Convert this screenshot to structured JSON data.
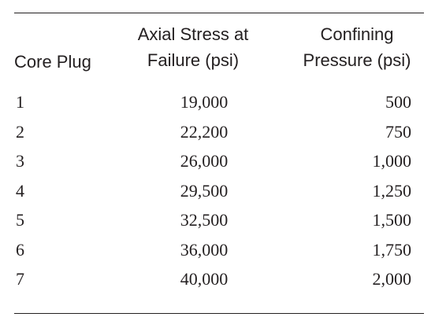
{
  "table": {
    "headers": {
      "core_plug": "Core Plug",
      "axial_stress_line1": "Axial Stress at",
      "axial_stress_line2": "Failure (psi)",
      "confining_line1": "Confining",
      "confining_line2": "Pressure (psi)"
    },
    "rows": [
      {
        "plug": "1",
        "axial": "19,000",
        "confining": "500"
      },
      {
        "plug": "2",
        "axial": "22,200",
        "confining": "750"
      },
      {
        "plug": "3",
        "axial": "26,000",
        "confining": "1,000"
      },
      {
        "plug": "4",
        "axial": "29,500",
        "confining": "1,250"
      },
      {
        "plug": "5",
        "axial": "32,500",
        "confining": "1,500"
      },
      {
        "plug": "6",
        "axial": "36,000",
        "confining": "1,750"
      },
      {
        "plug": "7",
        "axial": "40,000",
        "confining": "2,000"
      }
    ]
  }
}
